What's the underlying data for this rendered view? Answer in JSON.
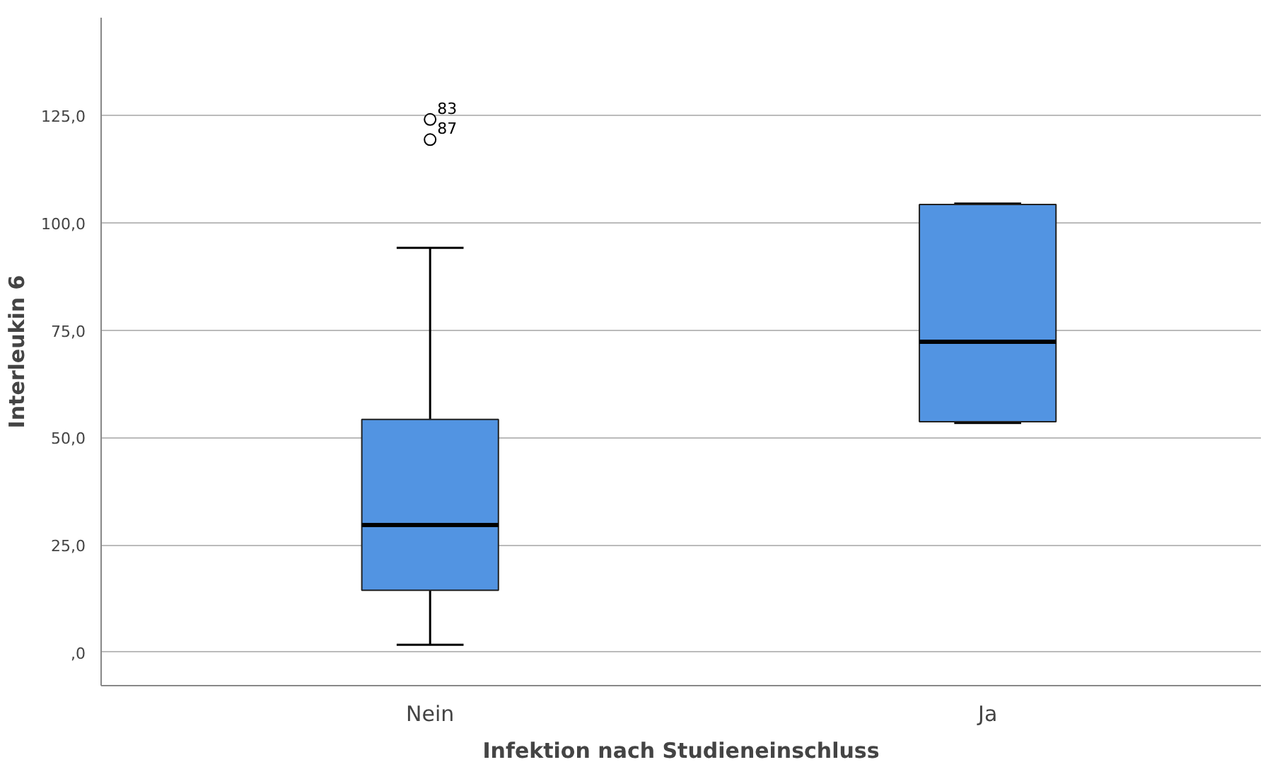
{
  "chart_data": {
    "type": "box",
    "xlabel": "Infektion nach Studieneinschluss",
    "ylabel": "Interleukin 6",
    "categories": [
      "Nein",
      "Ja"
    ],
    "boxes": [
      {
        "low": 1.7,
        "q1": 14.4,
        "median": 29.6,
        "q3": 54.2,
        "high": 94.2,
        "outliers": [
          124.1,
          119.4
        ]
      },
      {
        "low": 53.4,
        "q1": 53.7,
        "median": 72.3,
        "q3": 104.3,
        "high": 104.5
      }
    ],
    "color": "#5294e2",
    "ylim": [
      -7.8,
      147.8
    ],
    "yticks": [
      {
        "value": 0,
        "label": ",0"
      },
      {
        "value": 25,
        "label": "25,0"
      },
      {
        "value": 50,
        "label": "50,0"
      },
      {
        "value": 75,
        "label": "75,0"
      },
      {
        "value": 100,
        "label": "100,0"
      },
      {
        "value": 125,
        "label": "125,0"
      }
    ],
    "grid": "y",
    "annotations": [
      "83",
      "87"
    ]
  }
}
